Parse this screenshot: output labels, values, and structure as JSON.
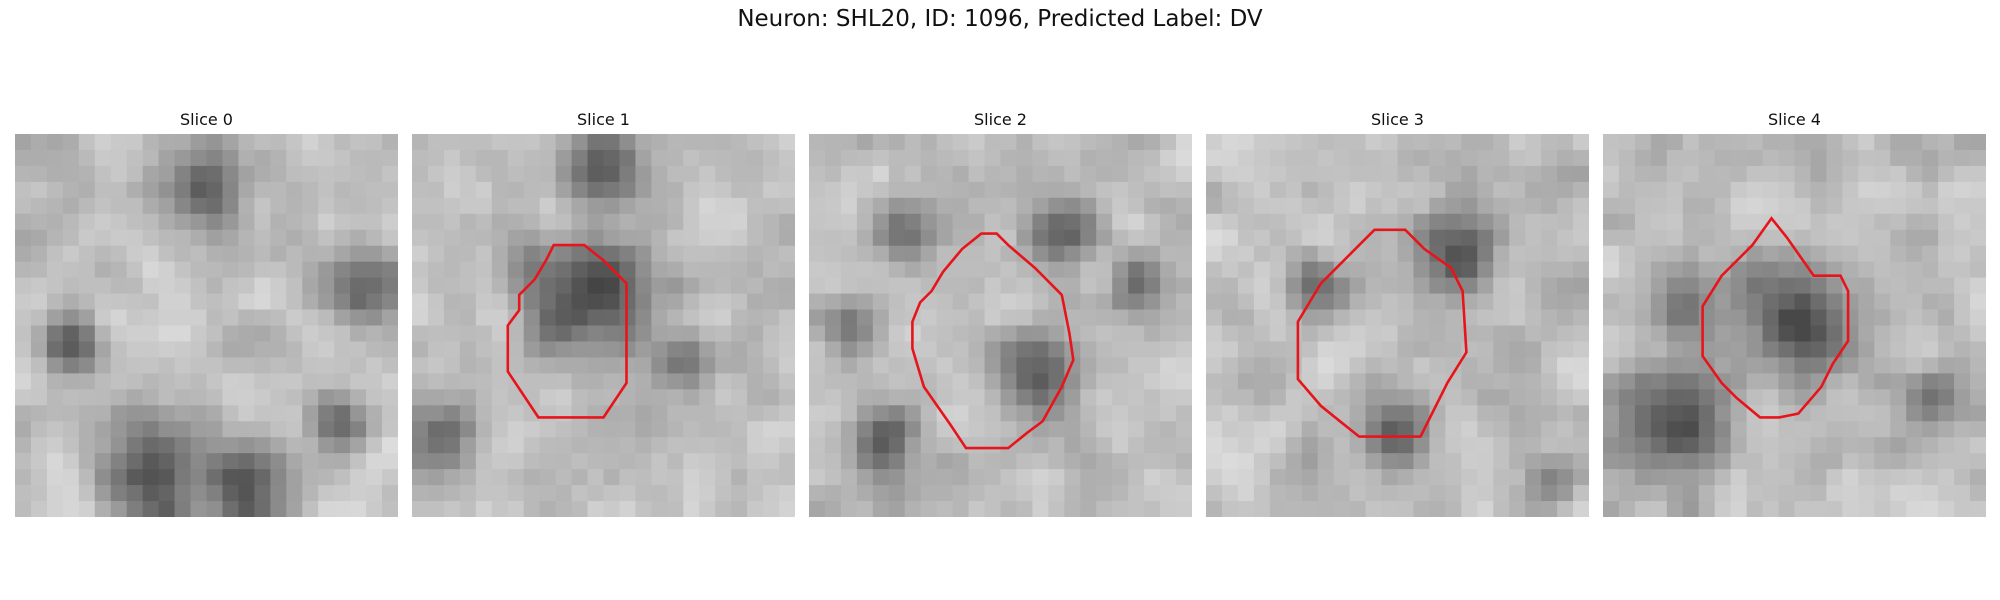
{
  "figure": {
    "title": "Neuron: SHL20, ID: 1096, Predicted Label: DV"
  },
  "panels": [
    {
      "title": "Slice 0",
      "seed": 11,
      "has_contour": false,
      "contour": [],
      "dark_spots": [
        [
          0.5,
          0.15,
          0.09
        ],
        [
          0.35,
          0.9,
          0.12
        ],
        [
          0.6,
          0.92,
          0.1
        ],
        [
          0.9,
          0.4,
          0.08
        ],
        [
          0.15,
          0.55,
          0.07
        ],
        [
          0.85,
          0.75,
          0.07
        ]
      ]
    },
    {
      "title": "Slice 1",
      "seed": 23,
      "has_contour": true,
      "contour": [
        [
          0.37,
          0.29
        ],
        [
          0.45,
          0.29
        ],
        [
          0.5,
          0.33
        ],
        [
          0.56,
          0.39
        ],
        [
          0.56,
          0.65
        ],
        [
          0.5,
          0.74
        ],
        [
          0.33,
          0.74
        ],
        [
          0.25,
          0.62
        ],
        [
          0.25,
          0.5
        ],
        [
          0.28,
          0.46
        ],
        [
          0.28,
          0.42
        ],
        [
          0.32,
          0.38
        ],
        [
          0.35,
          0.33
        ]
      ],
      "dark_spots": [
        [
          0.45,
          0.42,
          0.15
        ],
        [
          0.08,
          0.8,
          0.07
        ],
        [
          0.7,
          0.6,
          0.06
        ],
        [
          0.5,
          0.1,
          0.08
        ]
      ]
    },
    {
      "title": "Slice 2",
      "seed": 37,
      "has_contour": true,
      "contour": [
        [
          0.45,
          0.26
        ],
        [
          0.49,
          0.26
        ],
        [
          0.52,
          0.29
        ],
        [
          0.59,
          0.35
        ],
        [
          0.66,
          0.42
        ],
        [
          0.68,
          0.52
        ],
        [
          0.69,
          0.59
        ],
        [
          0.66,
          0.66
        ],
        [
          0.61,
          0.75
        ],
        [
          0.57,
          0.78
        ],
        [
          0.52,
          0.82
        ],
        [
          0.41,
          0.82
        ],
        [
          0.37,
          0.76
        ],
        [
          0.3,
          0.66
        ],
        [
          0.27,
          0.56
        ],
        [
          0.27,
          0.49
        ],
        [
          0.29,
          0.44
        ],
        [
          0.32,
          0.41
        ],
        [
          0.35,
          0.36
        ],
        [
          0.4,
          0.3
        ]
      ],
      "dark_spots": [
        [
          0.6,
          0.62,
          0.1
        ],
        [
          0.2,
          0.8,
          0.08
        ],
        [
          0.65,
          0.25,
          0.08
        ],
        [
          0.25,
          0.25,
          0.07
        ],
        [
          0.1,
          0.5,
          0.05
        ],
        [
          0.85,
          0.4,
          0.06
        ]
      ]
    },
    {
      "title": "Slice 3",
      "seed": 51,
      "has_contour": true,
      "contour": [
        [
          0.44,
          0.25
        ],
        [
          0.52,
          0.25
        ],
        [
          0.57,
          0.3
        ],
        [
          0.64,
          0.35
        ],
        [
          0.67,
          0.41
        ],
        [
          0.68,
          0.57
        ],
        [
          0.63,
          0.65
        ],
        [
          0.56,
          0.79
        ],
        [
          0.4,
          0.79
        ],
        [
          0.35,
          0.75
        ],
        [
          0.3,
          0.71
        ],
        [
          0.24,
          0.64
        ],
        [
          0.24,
          0.49
        ],
        [
          0.27,
          0.44
        ],
        [
          0.3,
          0.39
        ],
        [
          0.36,
          0.33
        ],
        [
          0.4,
          0.29
        ]
      ],
      "dark_spots": [
        [
          0.65,
          0.3,
          0.1
        ],
        [
          0.5,
          0.78,
          0.08
        ],
        [
          0.28,
          0.4,
          0.06
        ],
        [
          0.9,
          0.9,
          0.04
        ]
      ]
    },
    {
      "title": "Slice 4",
      "seed": 67,
      "has_contour": true,
      "contour": [
        [
          0.44,
          0.22
        ],
        [
          0.48,
          0.27
        ],
        [
          0.55,
          0.37
        ],
        [
          0.62,
          0.37
        ],
        [
          0.64,
          0.41
        ],
        [
          0.64,
          0.54
        ],
        [
          0.6,
          0.6
        ],
        [
          0.57,
          0.66
        ],
        [
          0.51,
          0.73
        ],
        [
          0.46,
          0.74
        ],
        [
          0.41,
          0.74
        ],
        [
          0.35,
          0.69
        ],
        [
          0.31,
          0.65
        ],
        [
          0.26,
          0.58
        ],
        [
          0.26,
          0.45
        ],
        [
          0.31,
          0.37
        ],
        [
          0.39,
          0.29
        ]
      ],
      "dark_spots": [
        [
          0.5,
          0.47,
          0.14
        ],
        [
          0.18,
          0.75,
          0.13
        ],
        [
          0.2,
          0.45,
          0.07
        ],
        [
          0.85,
          0.7,
          0.05
        ]
      ]
    }
  ]
}
